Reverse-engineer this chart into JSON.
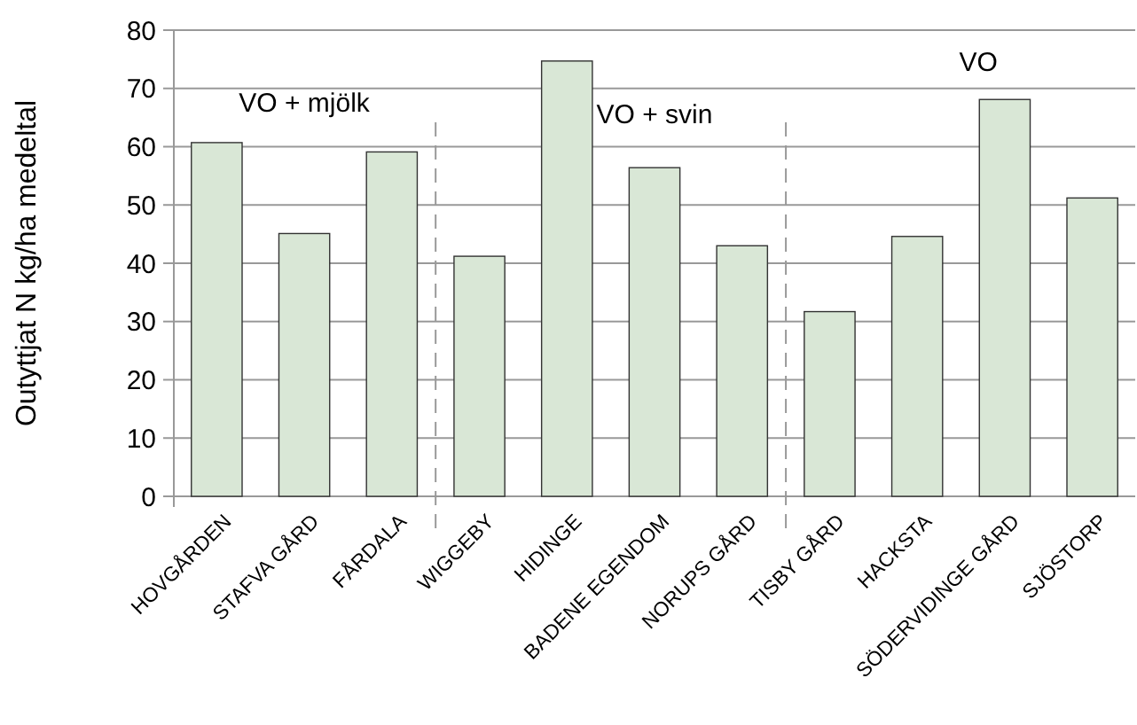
{
  "chart_data": {
    "type": "bar",
    "ylabel": "Outyttjat N kg/ha medeltal",
    "categories": [
      "HOVGÅRDEN",
      "STAFVA GÅRD",
      "FÅRDALA",
      "WIGGEBY",
      "HIDINGE",
      "BADENE EGENDOM",
      "NORUPS GÅRD",
      "TISBY GÅRD",
      "HACKSTA",
      "SÖDERVIDINGE GÅRD",
      "SJÖSTORP"
    ],
    "values": [
      60.7,
      45.1,
      59.1,
      41.2,
      74.7,
      56.4,
      43,
      31.7,
      44.6,
      68.1,
      51.2
    ],
    "color": "#d9e7d6",
    "ylim": [
      0,
      80
    ],
    "yticks": [
      0,
      10,
      20,
      30,
      40,
      50,
      60,
      70,
      80
    ],
    "grid": "y",
    "annotations": [
      "VO + mjölk",
      "VO + svin",
      "VO"
    ]
  }
}
